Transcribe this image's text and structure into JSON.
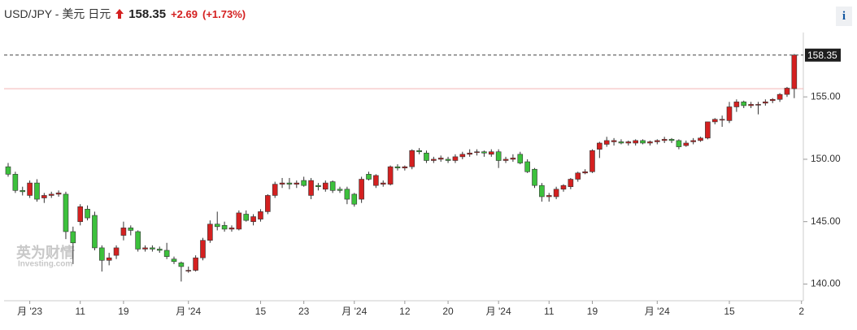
{
  "header": {
    "symbol": "USD/JPY - 美元 日元",
    "price": "158.35",
    "change": "+2.69",
    "change_pct": "(+1.73%)",
    "info_icon": "i"
  },
  "chart_data": {
    "type": "candlestick",
    "categories": [
      null,
      null,
      null,
      "月 '23",
      null,
      null,
      null,
      null,
      null,
      null,
      "11",
      null,
      null,
      null,
      null,
      null,
      "19",
      null,
      null,
      null,
      null,
      null,
      null,
      null,
      null,
      "月 '24",
      null,
      null,
      null,
      null,
      null,
      null,
      null,
      null,
      null,
      "15",
      null,
      null,
      null,
      null,
      null,
      "23",
      null,
      null,
      null,
      null,
      null,
      null,
      "月 '24",
      null,
      null,
      null,
      null,
      null,
      null,
      "12",
      null,
      null,
      null,
      null,
      null,
      "20",
      null,
      null,
      null,
      null,
      null,
      null,
      "月 '24",
      null,
      null,
      null,
      null,
      null,
      null,
      "11",
      null,
      null,
      null,
      null,
      null,
      "19",
      null,
      null,
      null,
      null,
      null,
      null,
      null,
      null,
      "月 '24",
      null,
      null,
      null,
      null,
      null,
      null,
      null,
      null,
      null,
      "15",
      null,
      null,
      null,
      null,
      null,
      null,
      null,
      null,
      null,
      "2"
    ],
    "ohlc": [
      [
        149.4,
        149.7,
        148.6,
        148.8
      ],
      [
        148.8,
        149.0,
        147.3,
        147.5
      ],
      [
        147.5,
        147.8,
        147.1,
        147.4
      ],
      [
        147.1,
        148.3,
        146.9,
        148.1
      ],
      [
        148.1,
        148.4,
        146.6,
        146.8
      ],
      [
        146.9,
        147.3,
        146.5,
        147.1
      ],
      [
        147.1,
        147.4,
        146.9,
        147.2
      ],
      [
        147.2,
        147.5,
        147.0,
        147.3
      ],
      [
        147.2,
        147.4,
        143.6,
        144.2
      ],
      [
        144.2,
        144.6,
        141.6,
        143.3
      ],
      [
        145.0,
        146.4,
        144.7,
        146.2
      ],
      [
        146.0,
        146.3,
        145.1,
        145.3
      ],
      [
        145.5,
        145.8,
        142.7,
        142.9
      ],
      [
        142.9,
        143.1,
        141.0,
        141.9
      ],
      [
        141.9,
        142.5,
        141.5,
        142.1
      ],
      [
        142.3,
        143.1,
        142.0,
        142.9
      ],
      [
        143.9,
        145.0,
        143.5,
        144.5
      ],
      [
        144.5,
        144.7,
        143.9,
        144.3
      ],
      [
        144.2,
        144.3,
        142.6,
        142.8
      ],
      [
        142.8,
        143.1,
        142.6,
        142.9
      ],
      [
        142.9,
        143.1,
        142.6,
        142.8
      ],
      [
        142.8,
        143.0,
        142.5,
        142.7
      ],
      [
        142.7,
        143.3,
        142.0,
        142.2
      ],
      [
        142.0,
        142.2,
        141.6,
        141.8
      ],
      [
        141.7,
        141.8,
        140.2,
        141.4
      ],
      [
        141.1,
        141.4,
        140.9,
        141.1
      ],
      [
        141.1,
        142.3,
        141.0,
        142.1
      ],
      [
        142.1,
        143.7,
        141.9,
        143.5
      ],
      [
        143.5,
        145.1,
        143.3,
        144.8
      ],
      [
        144.8,
        145.8,
        144.3,
        144.6
      ],
      [
        144.7,
        145.0,
        144.2,
        144.4
      ],
      [
        144.4,
        144.7,
        144.2,
        144.5
      ],
      [
        144.4,
        145.9,
        144.3,
        145.7
      ],
      [
        145.6,
        145.9,
        145.0,
        145.1
      ],
      [
        145.0,
        145.6,
        144.7,
        145.4
      ],
      [
        145.2,
        146.0,
        145.0,
        145.8
      ],
      [
        145.8,
        147.2,
        145.6,
        147.1
      ],
      [
        147.1,
        148.2,
        146.9,
        148.0
      ],
      [
        148.0,
        148.5,
        147.7,
        148.1
      ],
      [
        148.1,
        148.5,
        147.6,
        148.0
      ],
      [
        148.0,
        148.3,
        147.7,
        148.1
      ],
      [
        148.3,
        148.6,
        147.8,
        147.9
      ],
      [
        147.1,
        148.5,
        146.8,
        148.3
      ],
      [
        147.9,
        148.1,
        147.5,
        147.8
      ],
      [
        147.6,
        148.3,
        147.4,
        148.1
      ],
      [
        148.2,
        148.3,
        147.3,
        147.5
      ],
      [
        147.6,
        147.8,
        147.3,
        147.5
      ],
      [
        147.6,
        147.8,
        146.4,
        146.8
      ],
      [
        147.2,
        147.3,
        146.2,
        146.4
      ],
      [
        146.8,
        148.6,
        146.5,
        148.4
      ],
      [
        148.8,
        149.0,
        148.3,
        148.4
      ],
      [
        147.9,
        148.8,
        147.7,
        148.7
      ],
      [
        148.0,
        148.3,
        147.8,
        148.1
      ],
      [
        148.0,
        149.5,
        147.9,
        149.4
      ],
      [
        149.4,
        149.6,
        149.1,
        149.3
      ],
      [
        149.3,
        149.5,
        149.1,
        149.4
      ],
      [
        149.4,
        150.8,
        149.2,
        150.7
      ],
      [
        150.7,
        150.9,
        150.4,
        150.6
      ],
      [
        150.5,
        150.7,
        149.7,
        149.9
      ],
      [
        149.9,
        150.2,
        149.7,
        150.0
      ],
      [
        150.0,
        150.3,
        149.8,
        150.1
      ],
      [
        150.0,
        150.2,
        149.7,
        149.9
      ],
      [
        149.9,
        150.4,
        149.7,
        150.2
      ],
      [
        150.2,
        150.6,
        150.0,
        150.4
      ],
      [
        150.4,
        150.8,
        150.2,
        150.5
      ],
      [
        150.6,
        150.8,
        150.3,
        150.6
      ],
      [
        150.6,
        150.7,
        150.2,
        150.5
      ],
      [
        150.4,
        150.8,
        150.2,
        150.6
      ],
      [
        150.6,
        150.8,
        149.3,
        149.9
      ],
      [
        149.9,
        150.2,
        149.7,
        150.0
      ],
      [
        150.0,
        150.4,
        149.8,
        150.1
      ],
      [
        150.4,
        150.6,
        149.6,
        149.7
      ],
      [
        149.8,
        150.0,
        148.9,
        149.0
      ],
      [
        149.2,
        149.3,
        147.7,
        147.9
      ],
      [
        147.9,
        148.1,
        146.6,
        147.0
      ],
      [
        147.0,
        147.3,
        146.6,
        147.1
      ],
      [
        147.0,
        147.8,
        146.8,
        147.6
      ],
      [
        147.6,
        148.0,
        147.4,
        147.9
      ],
      [
        147.8,
        148.5,
        147.6,
        148.4
      ],
      [
        148.4,
        149.0,
        148.2,
        148.9
      ],
      [
        148.9,
        149.2,
        148.8,
        149.0
      ],
      [
        149.0,
        150.8,
        148.9,
        150.7
      ],
      [
        150.8,
        151.4,
        150.1,
        151.3
      ],
      [
        151.2,
        151.8,
        151.0,
        151.5
      ],
      [
        151.4,
        151.7,
        151.1,
        151.5
      ],
      [
        151.4,
        151.6,
        151.2,
        151.3
      ],
      [
        151.3,
        151.5,
        151.1,
        151.4
      ],
      [
        151.3,
        151.6,
        151.1,
        151.5
      ],
      [
        151.5,
        151.6,
        151.2,
        151.3
      ],
      [
        151.3,
        151.5,
        151.1,
        151.4
      ],
      [
        151.4,
        151.6,
        151.2,
        151.5
      ],
      [
        151.5,
        151.8,
        151.3,
        151.6
      ],
      [
        151.6,
        151.7,
        151.3,
        151.5
      ],
      [
        151.5,
        151.6,
        150.8,
        151.0
      ],
      [
        151.1,
        151.5,
        151.0,
        151.3
      ],
      [
        151.4,
        151.7,
        151.2,
        151.5
      ],
      [
        151.5,
        151.8,
        151.4,
        151.7
      ],
      [
        151.7,
        153.0,
        151.6,
        153.0
      ],
      [
        153.0,
        153.3,
        152.8,
        153.2
      ],
      [
        153.2,
        153.5,
        152.6,
        153.2
      ],
      [
        153.1,
        154.6,
        152.9,
        154.2
      ],
      [
        154.2,
        154.8,
        153.8,
        154.6
      ],
      [
        154.6,
        154.7,
        154.1,
        154.3
      ],
      [
        154.3,
        154.6,
        154.1,
        154.4
      ],
      [
        154.4,
        154.6,
        153.6,
        154.4
      ],
      [
        154.5,
        154.8,
        154.3,
        154.6
      ],
      [
        154.7,
        154.9,
        154.5,
        154.8
      ],
      [
        154.8,
        155.3,
        154.6,
        155.2
      ],
      [
        155.2,
        155.8,
        155.0,
        155.7
      ],
      [
        155.66,
        158.44,
        154.9,
        158.35
      ],
      null
    ],
    "up_color": "#d42020",
    "down_color": "#3cc13c",
    "ylim": [
      138.66,
      160.16
    ],
    "yticks": [
      {
        "value": 140,
        "label": "140.00"
      },
      {
        "value": 145,
        "label": "145.00"
      },
      {
        "value": 150,
        "label": "150.00"
      },
      {
        "value": 155,
        "label": "155.00"
      }
    ],
    "price_line": 158.35,
    "prev_close": 155.66,
    "watermark": [
      "英为财情",
      "Investing.com"
    ]
  }
}
